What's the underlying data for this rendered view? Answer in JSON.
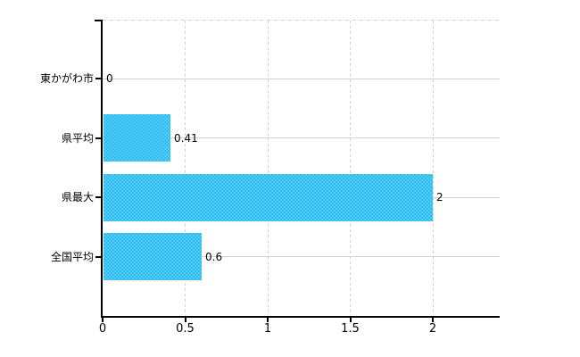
{
  "chart_data": {
    "type": "bar",
    "orientation": "horizontal",
    "title": "",
    "categories": [
      "東かがわ市",
      "県平均",
      "県最大",
      "全国平均"
    ],
    "values": [
      0,
      0.41,
      2,
      0.6
    ],
    "value_labels": [
      "0",
      "0.41",
      "2",
      "0.6"
    ],
    "x_ticks": [
      {
        "value": 0,
        "label": "0"
      },
      {
        "value": 0.5,
        "label": "0.5"
      },
      {
        "value": 1,
        "label": "1"
      },
      {
        "value": 1.5,
        "label": "1.5"
      },
      {
        "value": 2,
        "label": "2"
      }
    ],
    "xlim": [
      0,
      2.4
    ],
    "grid": true,
    "legend": "none",
    "colors": {
      "bar": "#3cc0f2",
      "bar_dither_light": "#52caf2",
      "bar_dither_dark": "#2ebdf2",
      "h_grid": "#ccd5c7",
      "v_grid": "#d3ced3",
      "top_border": "#cfcfcf",
      "axis": "#000000",
      "text": "#000000",
      "background": "#ffffff"
    }
  }
}
